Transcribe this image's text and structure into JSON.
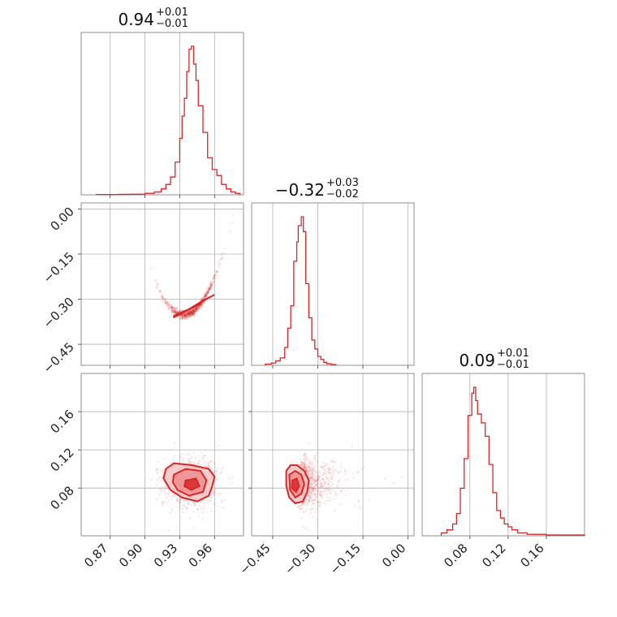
{
  "chart_data": {
    "type": "corner",
    "color": "#d62728",
    "parameters": [
      {
        "value": "0.94",
        "plus": "+0.01",
        "minus": "−0.01",
        "range": [
          0.845,
          0.985
        ],
        "ticks": [
          0.87,
          0.9,
          0.93,
          0.96
        ],
        "tick_labels": [
          "0.87",
          "0.90",
          "0.93",
          "0.96"
        ]
      },
      {
        "value": "−0.32",
        "plus": "+0.03",
        "minus": "−0.02",
        "range": [
          -0.52,
          0.02
        ],
        "ticks": [
          -0.45,
          -0.3,
          -0.15,
          0.0
        ],
        "tick_labels": [
          "−0.45",
          "−0.30",
          "−0.15",
          "0.00"
        ]
      },
      {
        "value": "0.09",
        "plus": "+0.01",
        "minus": "−0.01",
        "range": [
          0.03,
          0.2
        ],
        "ticks": [
          0.08,
          0.12,
          0.16
        ],
        "tick_labels": [
          "0.08",
          "0.12",
          "0.16"
        ]
      }
    ],
    "histograms": [
      {
        "param": 0,
        "bins": [
          [
            0.858,
            0.86,
            0.002
          ],
          [
            0.87,
            0.872,
            0.002
          ],
          [
            0.878,
            0.882,
            0.003
          ],
          [
            0.888,
            0.89,
            0.004
          ],
          [
            0.9,
            0.902,
            0.01
          ],
          [
            0.908,
            0.912,
            0.02
          ],
          [
            0.914,
            0.918,
            0.04
          ],
          [
            0.918,
            0.922,
            0.07
          ],
          [
            0.922,
            0.926,
            0.12
          ],
          [
            0.926,
            0.93,
            0.22
          ],
          [
            0.93,
            0.932,
            0.38
          ],
          [
            0.932,
            0.934,
            0.53
          ],
          [
            0.934,
            0.936,
            0.65
          ],
          [
            0.936,
            0.938,
            0.83
          ],
          [
            0.938,
            0.94,
            0.98
          ],
          [
            0.94,
            0.942,
            1.0
          ],
          [
            0.942,
            0.944,
            0.88
          ],
          [
            0.944,
            0.946,
            0.77
          ],
          [
            0.946,
            0.95,
            0.6
          ],
          [
            0.95,
            0.954,
            0.42
          ],
          [
            0.954,
            0.958,
            0.25
          ],
          [
            0.958,
            0.962,
            0.17
          ],
          [
            0.962,
            0.966,
            0.13
          ],
          [
            0.966,
            0.97,
            0.07
          ],
          [
            0.97,
            0.974,
            0.04
          ],
          [
            0.974,
            0.978,
            0.02
          ],
          [
            0.978,
            0.982,
            0.01
          ]
        ]
      },
      {
        "param": 1,
        "bins": [
          [
            -0.475,
            -0.455,
            0.008
          ],
          [
            -0.455,
            -0.44,
            0.015
          ],
          [
            -0.44,
            -0.425,
            0.03
          ],
          [
            -0.425,
            -0.41,
            0.05
          ],
          [
            -0.41,
            -0.4,
            0.12
          ],
          [
            -0.4,
            -0.39,
            0.25
          ],
          [
            -0.39,
            -0.38,
            0.4
          ],
          [
            -0.38,
            -0.37,
            0.7
          ],
          [
            -0.37,
            -0.365,
            0.83
          ],
          [
            -0.365,
            -0.355,
            0.94
          ],
          [
            -0.355,
            -0.348,
            1.0
          ],
          [
            -0.348,
            -0.34,
            0.9
          ],
          [
            -0.34,
            -0.33,
            0.55
          ],
          [
            -0.33,
            -0.32,
            0.32
          ],
          [
            -0.32,
            -0.31,
            0.17
          ],
          [
            -0.31,
            -0.3,
            0.11
          ],
          [
            -0.3,
            -0.29,
            0.06
          ],
          [
            -0.29,
            -0.28,
            0.04
          ],
          [
            -0.28,
            -0.27,
            0.02
          ],
          [
            -0.27,
            -0.255,
            0.01
          ],
          [
            -0.255,
            -0.24,
            0.005
          ]
        ]
      },
      {
        "param": 2,
        "bins": [
          [
            0.05,
            0.056,
            0.02
          ],
          [
            0.056,
            0.062,
            0.04
          ],
          [
            0.062,
            0.066,
            0.08
          ],
          [
            0.066,
            0.07,
            0.15
          ],
          [
            0.07,
            0.074,
            0.32
          ],
          [
            0.074,
            0.078,
            0.52
          ],
          [
            0.078,
            0.082,
            0.81
          ],
          [
            0.082,
            0.084,
            0.96
          ],
          [
            0.084,
            0.086,
            1.0
          ],
          [
            0.086,
            0.088,
            0.91
          ],
          [
            0.088,
            0.092,
            0.82
          ],
          [
            0.092,
            0.096,
            0.76
          ],
          [
            0.096,
            0.1,
            0.67
          ],
          [
            0.1,
            0.104,
            0.48
          ],
          [
            0.104,
            0.108,
            0.29
          ],
          [
            0.108,
            0.112,
            0.17
          ],
          [
            0.112,
            0.116,
            0.12
          ],
          [
            0.116,
            0.12,
            0.08
          ],
          [
            0.12,
            0.124,
            0.06
          ],
          [
            0.124,
            0.13,
            0.04
          ],
          [
            0.13,
            0.14,
            0.02
          ],
          [
            0.14,
            0.16,
            0.01
          ],
          [
            0.16,
            0.2,
            0.005
          ]
        ]
      }
    ],
    "correlations": {
      "rho_01": 0.97,
      "rho_02": 0.0,
      "rho_12": 0.0
    },
    "means": [
      0.94,
      -0.345,
      0.086
    ],
    "sigmas": [
      0.012,
      0.028,
      0.012
    ],
    "contours_2d": [
      {
        "x_param": 0,
        "y_param": 1,
        "levels": [
          [
            [
              0.925,
              -0.355
            ],
            [
              0.94,
              -0.33
            ],
            [
              0.955,
              -0.295
            ],
            [
              0.96,
              -0.285
            ],
            [
              0.95,
              -0.305
            ],
            [
              0.935,
              -0.34
            ],
            [
              0.925,
              -0.36
            ]
          ],
          [
            [
              0.932,
              -0.345
            ],
            [
              0.94,
              -0.33
            ],
            [
              0.948,
              -0.315
            ],
            [
              0.944,
              -0.32
            ],
            [
              0.936,
              -0.338
            ]
          ]
        ]
      },
      {
        "x_param": 0,
        "y_param": 2,
        "levels": [
          [
            [
              0.918,
              0.1
            ],
            [
              0.925,
              0.106
            ],
            [
              0.94,
              0.104
            ],
            [
              0.955,
              0.1
            ],
            [
              0.96,
              0.092
            ],
            [
              0.958,
              0.082
            ],
            [
              0.955,
              0.072
            ],
            [
              0.945,
              0.066
            ],
            [
              0.932,
              0.07
            ],
            [
              0.922,
              0.078
            ],
            [
              0.916,
              0.09
            ]
          ],
          [
            [
              0.925,
              0.094
            ],
            [
              0.935,
              0.1
            ],
            [
              0.948,
              0.098
            ],
            [
              0.953,
              0.088
            ],
            [
              0.95,
              0.076
            ],
            [
              0.938,
              0.072
            ],
            [
              0.928,
              0.078
            ],
            [
              0.924,
              0.086
            ]
          ],
          [
            [
              0.935,
              0.088
            ],
            [
              0.944,
              0.09
            ],
            [
              0.947,
              0.082
            ],
            [
              0.94,
              0.078
            ],
            [
              0.934,
              0.082
            ]
          ]
        ]
      },
      {
        "x_param": 1,
        "y_param": 2,
        "levels": [
          [
            [
              -0.405,
              0.098
            ],
            [
              -0.39,
              0.104
            ],
            [
              -0.37,
              0.104
            ],
            [
              -0.345,
              0.098
            ],
            [
              -0.33,
              0.088
            ],
            [
              -0.335,
              0.076
            ],
            [
              -0.35,
              0.066
            ],
            [
              -0.375,
              0.064
            ],
            [
              -0.395,
              0.07
            ],
            [
              -0.405,
              0.082
            ]
          ],
          [
            [
              -0.395,
              0.094
            ],
            [
              -0.375,
              0.098
            ],
            [
              -0.355,
              0.094
            ],
            [
              -0.345,
              0.084
            ],
            [
              -0.355,
              0.074
            ],
            [
              -0.375,
              0.07
            ],
            [
              -0.392,
              0.078
            ]
          ],
          [
            [
              -0.385,
              0.088
            ],
            [
              -0.37,
              0.09
            ],
            [
              -0.362,
              0.082
            ],
            [
              -0.372,
              0.076
            ],
            [
              -0.386,
              0.08
            ]
          ]
        ]
      }
    ]
  }
}
